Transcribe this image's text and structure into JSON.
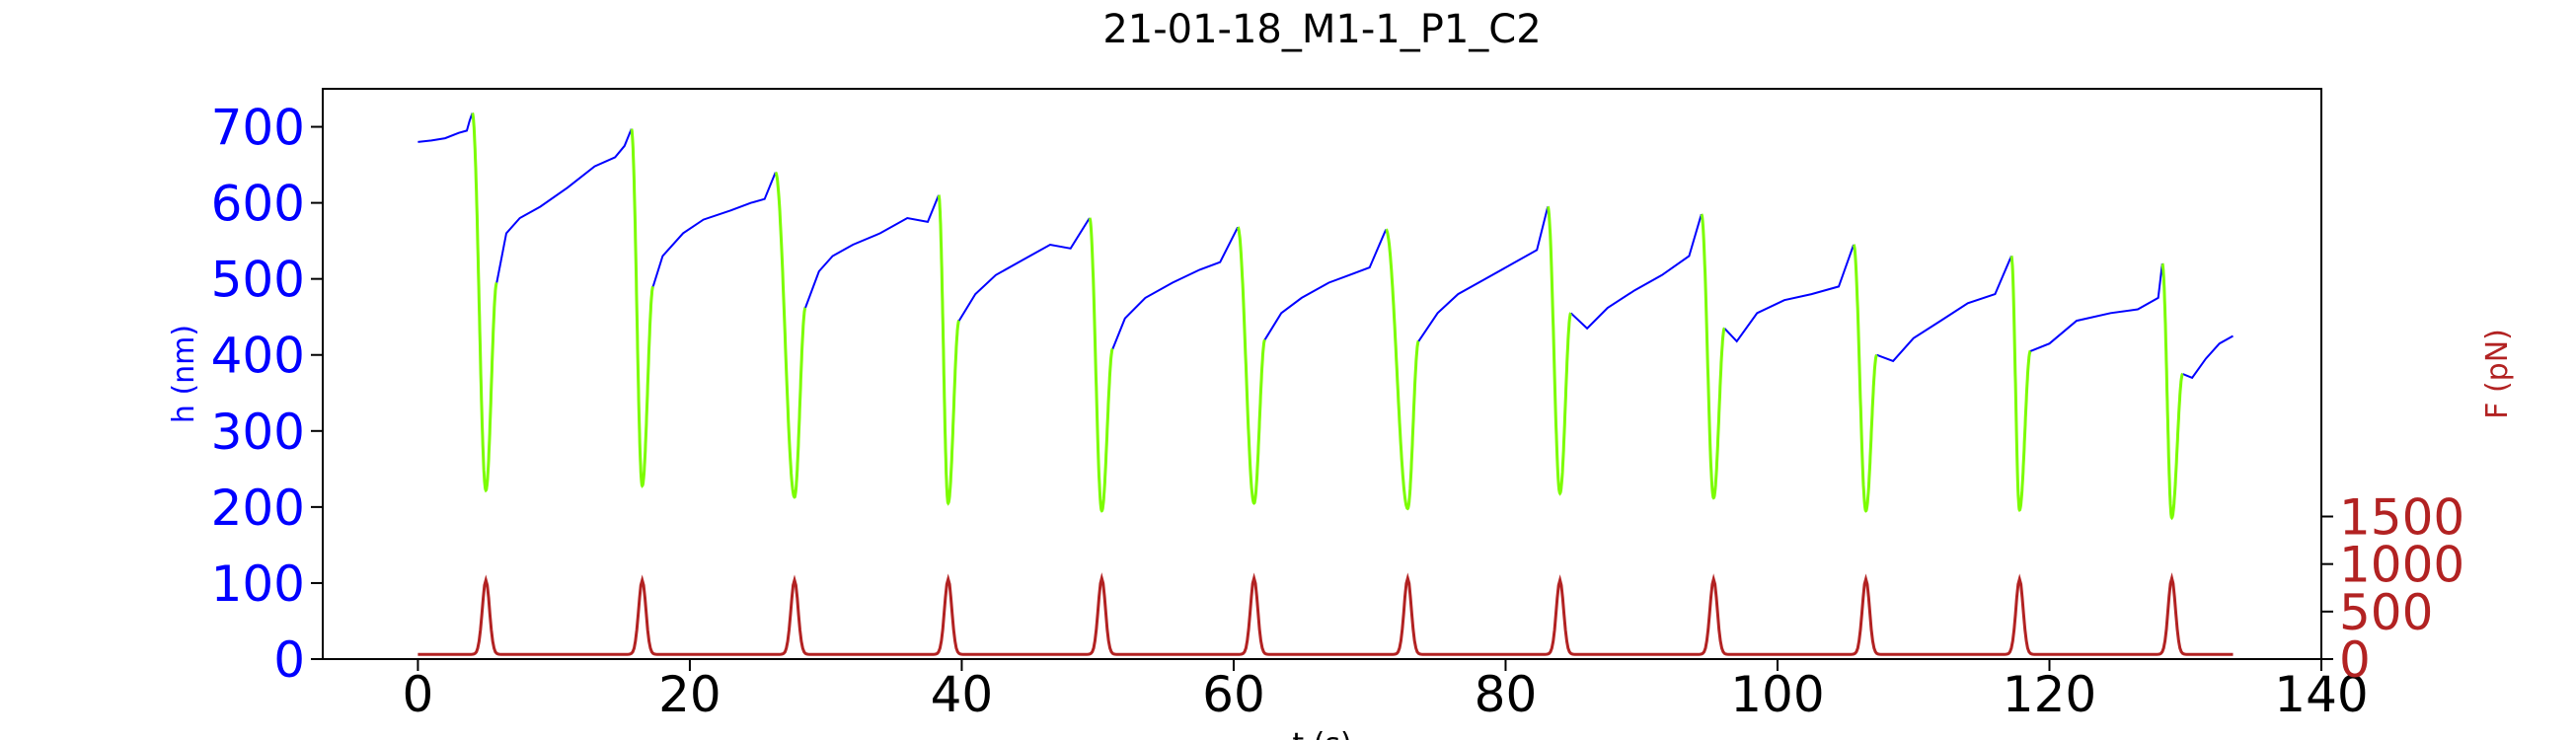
{
  "chart_data": {
    "type": "line",
    "title": "21-01-18_M1-1_P1_C2",
    "xlabel": "t (s)",
    "ylabel_left": "h (nm)",
    "ylabel_right": "F (pN)",
    "xlim": [
      -7,
      140
    ],
    "ylim_left": [
      0,
      750
    ],
    "ylim_right": [
      0,
      6000
    ],
    "xticks": [
      0,
      20,
      40,
      60,
      80,
      100,
      120,
      140
    ],
    "yticks_left": [
      0,
      100,
      200,
      300,
      400,
      500,
      600,
      700
    ],
    "yticks_right": [
      0,
      500,
      1000,
      1500
    ],
    "colors": {
      "height_low_force": "#0000ff",
      "height_high_force": "#7cfc00",
      "force": "#b22222",
      "left_axis_text": "#0000ff",
      "right_axis_text": "#b22222"
    },
    "pulse_centers": [
      5.0,
      16.5,
      27.7,
      39.0,
      50.3,
      61.5,
      72.8,
      84.0,
      95.3,
      106.5,
      117.8,
      129.0
    ],
    "height_minima": [
      222,
      228,
      213,
      205,
      195,
      205,
      198,
      218,
      212,
      195,
      196,
      186
    ],
    "force_baseline": 50,
    "force_peaks": [
      830,
      830,
      830,
      840,
      850,
      850,
      850,
      830,
      840,
      840,
      840,
      850
    ],
    "height_segments": [
      [
        [
          0,
          680
        ],
        [
          1,
          682
        ],
        [
          2,
          685
        ],
        [
          3,
          692
        ],
        [
          3.6,
          695
        ],
        [
          3.8,
          708
        ],
        [
          4.0,
          718
        ]
      ],
      [
        [
          5.8,
          495
        ],
        [
          6.5,
          560
        ],
        [
          7.5,
          580
        ],
        [
          9,
          595
        ],
        [
          11,
          620
        ],
        [
          13,
          648
        ],
        [
          14.5,
          660
        ],
        [
          15.2,
          675
        ],
        [
          15.7,
          697
        ]
      ],
      [
        [
          17.3,
          490
        ],
        [
          18,
          530
        ],
        [
          19.5,
          560
        ],
        [
          21,
          578
        ],
        [
          23,
          590
        ],
        [
          24.5,
          600
        ],
        [
          25.5,
          605
        ],
        [
          26.3,
          640
        ]
      ],
      [
        [
          28.5,
          462
        ],
        [
          29.5,
          510
        ],
        [
          30.5,
          530
        ],
        [
          32,
          545
        ],
        [
          34,
          560
        ],
        [
          36,
          580
        ],
        [
          37.5,
          575
        ],
        [
          38.3,
          610
        ]
      ],
      [
        [
          39.8,
          445
        ],
        [
          41,
          480
        ],
        [
          42.5,
          505
        ],
        [
          44.5,
          525
        ],
        [
          46.5,
          545
        ],
        [
          48,
          540
        ],
        [
          49.4,
          580
        ]
      ],
      [
        [
          51.1,
          408
        ],
        [
          52,
          448
        ],
        [
          53.5,
          475
        ],
        [
          55.5,
          495
        ],
        [
          57.5,
          512
        ],
        [
          59,
          522
        ],
        [
          60.3,
          568
        ]
      ],
      [
        [
          62.3,
          420
        ],
        [
          63.5,
          455
        ],
        [
          65,
          475
        ],
        [
          67,
          495
        ],
        [
          68.5,
          505
        ],
        [
          70,
          515
        ],
        [
          71.2,
          565
        ]
      ],
      [
        [
          73.6,
          418
        ],
        [
          75,
          455
        ],
        [
          76.5,
          480
        ],
        [
          78.5,
          500
        ],
        [
          80.5,
          520
        ],
        [
          82.3,
          538
        ],
        [
          83.1,
          595
        ]
      ],
      [
        [
          84.8,
          455
        ],
        [
          86,
          435
        ],
        [
          87.5,
          462
        ],
        [
          89.5,
          485
        ],
        [
          91.5,
          505
        ],
        [
          93.5,
          530
        ],
        [
          94.4,
          585
        ]
      ],
      [
        [
          96.1,
          435
        ],
        [
          97,
          418
        ],
        [
          98.5,
          455
        ],
        [
          100.5,
          472
        ],
        [
          102.5,
          480
        ],
        [
          104.5,
          490
        ],
        [
          105.6,
          545
        ]
      ],
      [
        [
          107.3,
          400
        ],
        [
          108.5,
          392
        ],
        [
          110,
          422
        ],
        [
          112,
          445
        ],
        [
          114,
          468
        ],
        [
          116,
          480
        ],
        [
          117.2,
          530
        ]
      ],
      [
        [
          118.6,
          405
        ],
        [
          120,
          415
        ],
        [
          122,
          445
        ],
        [
          124.5,
          455
        ],
        [
          126.5,
          460
        ],
        [
          128,
          475
        ],
        [
          128.3,
          520
        ]
      ],
      [
        [
          129.8,
          375
        ],
        [
          130.5,
          370
        ],
        [
          131.5,
          395
        ],
        [
          132.5,
          415
        ],
        [
          133.5,
          425
        ]
      ]
    ]
  }
}
